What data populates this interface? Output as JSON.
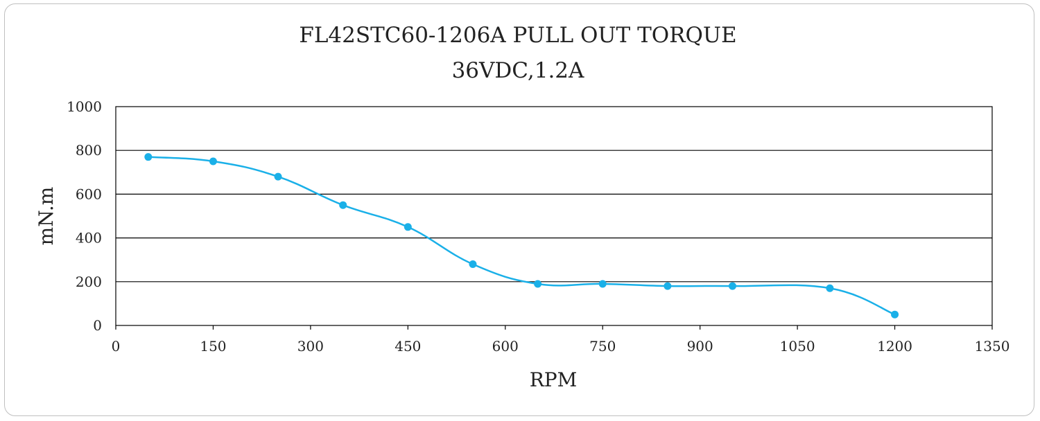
{
  "chart_data": {
    "type": "line",
    "title": "FL42STC60-1206A PULL OUT TORQUE",
    "subtitle": "36VDC,1.2A",
    "xlabel": "RPM",
    "ylabel": "mN.m",
    "xlim": [
      0,
      1350
    ],
    "ylim": [
      0,
      1000
    ],
    "xticks": [
      0,
      150,
      300,
      450,
      600,
      750,
      900,
      1050,
      1200,
      1350
    ],
    "yticks": [
      0,
      200,
      400,
      600,
      800,
      1000
    ],
    "grid": "horizontal",
    "smooth": true,
    "series": [
      {
        "color": "#1ab0e8",
        "x": [
          50,
          150,
          250,
          350,
          450,
          550,
          650,
          750,
          850,
          950,
          1100,
          1200
        ],
        "y": [
          770,
          750,
          680,
          550,
          450,
          280,
          190,
          190,
          180,
          180,
          170,
          50
        ]
      }
    ]
  }
}
